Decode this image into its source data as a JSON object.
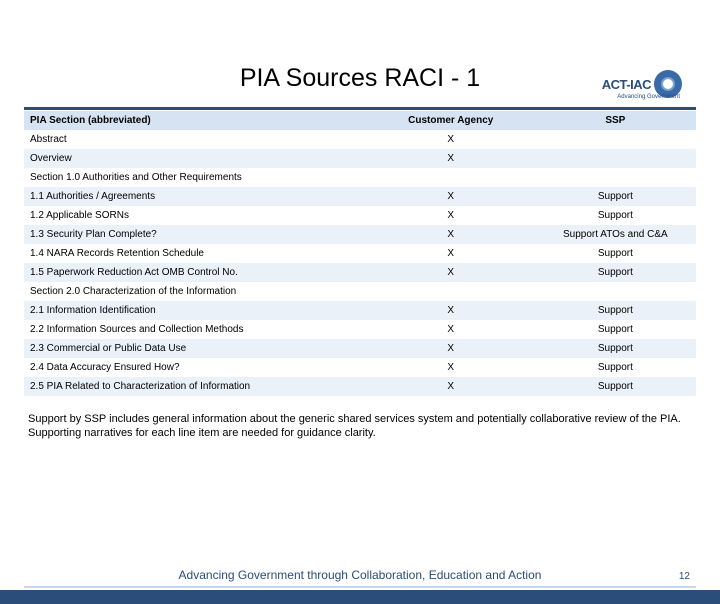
{
  "logo": {
    "name": "ACT-IAC",
    "tagline": "Advancing Government"
  },
  "title": "PIA Sources RACI - 1",
  "columns": [
    "PIA Section (abbreviated)",
    "Customer Agency",
    "SSP"
  ],
  "rows": [
    {
      "section": "Abstract",
      "customer": "X",
      "ssp": ""
    },
    {
      "section": "Overview",
      "customer": "X",
      "ssp": ""
    },
    {
      "section": "Section 1.0 Authorities and Other Requirements",
      "customer": "",
      "ssp": ""
    },
    {
      "section": "1.1 Authorities / Agreements",
      "customer": "X",
      "ssp": "Support"
    },
    {
      "section": "1.2 Applicable SORNs",
      "customer": "X",
      "ssp": "Support"
    },
    {
      "section": "1.3 Security Plan Complete?",
      "customer": "X",
      "ssp": "Support ATOs and C&A"
    },
    {
      "section": "1.4 NARA Records Retention Schedule",
      "customer": "X",
      "ssp": "Support"
    },
    {
      "section": "1.5 Paperwork Reduction Act OMB Control No.",
      "customer": "X",
      "ssp": "Support"
    },
    {
      "section": "Section 2.0 Characterization of the Information",
      "customer": "",
      "ssp": ""
    },
    {
      "section": "2.1 Information Identification",
      "customer": "X",
      "ssp": "Support"
    },
    {
      "section": "2.2 Information Sources and Collection Methods",
      "customer": "X",
      "ssp": "Support"
    },
    {
      "section": "2.3 Commercial or Public Data Use",
      "customer": "X",
      "ssp": "Support"
    },
    {
      "section": "2.4 Data Accuracy Ensured How?",
      "customer": "X",
      "ssp": "Support"
    },
    {
      "section": "2.5 PIA Related to Characterization of Information",
      "customer": "X",
      "ssp": "Support"
    }
  ],
  "footnote": "Support by SSP includes general information about the generic shared services system and potentially collaborative review of the PIA. Supporting narratives for each line item are needed for guidance clarity.",
  "footer": "Advancing Government through Collaboration, Education and Action",
  "page": "12",
  "colors": {
    "header_bg": "#d6e3f2",
    "alt_bg": "#eaf1f8",
    "rule": "#2a4d7a",
    "stripe": "#2a4d7a"
  }
}
